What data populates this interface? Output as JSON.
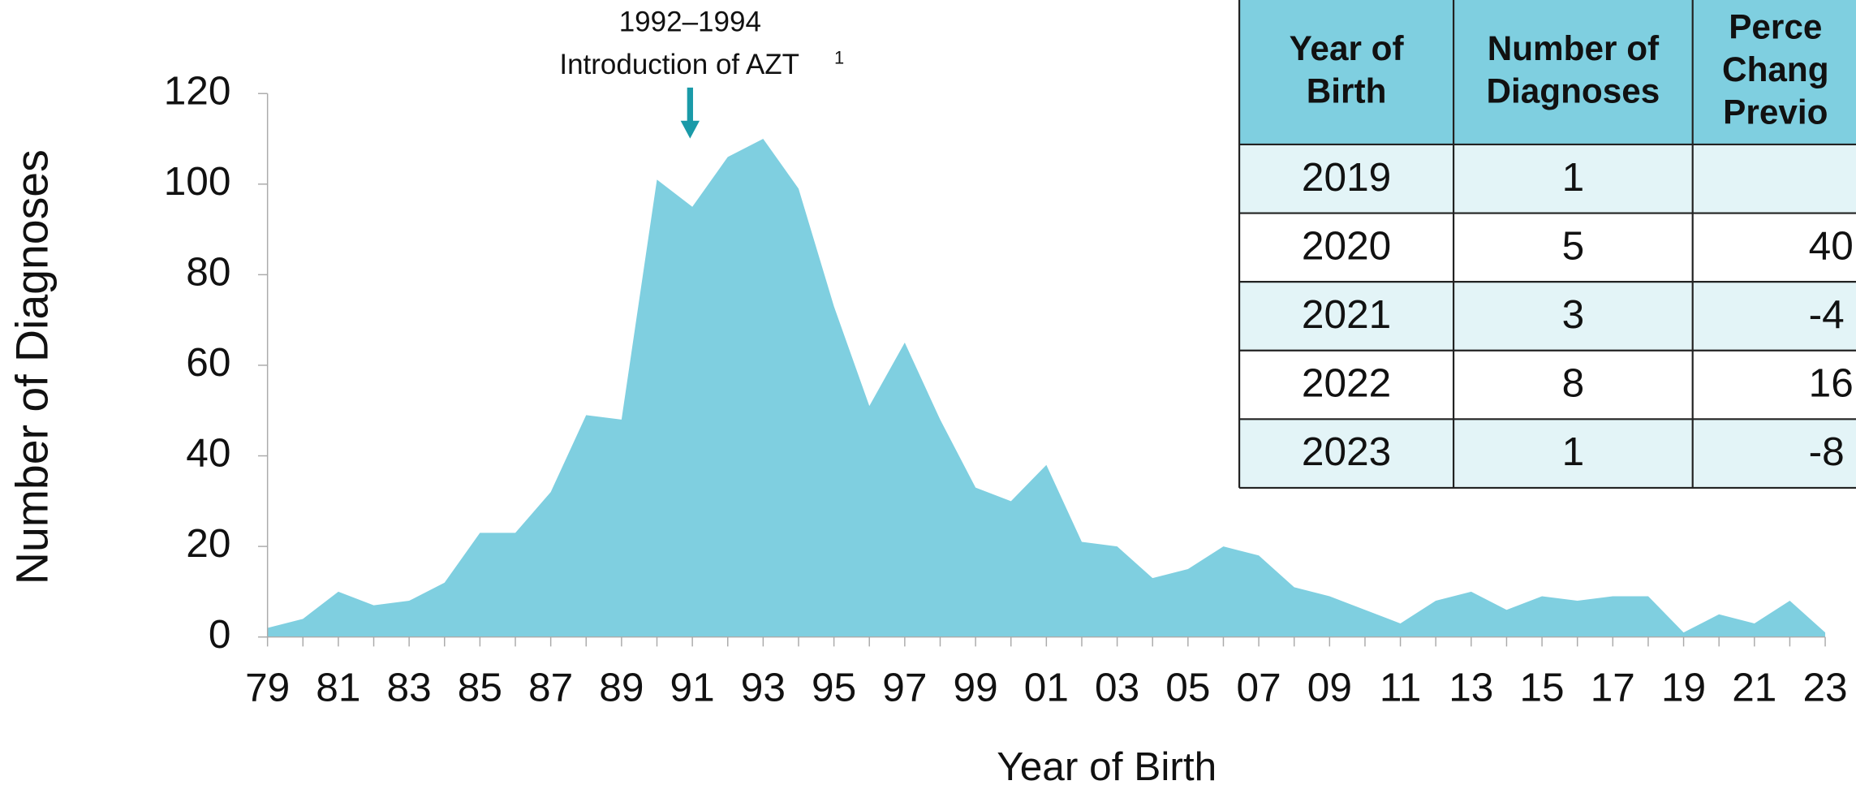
{
  "chart_data": {
    "type": "area",
    "annotation": {
      "years": "1992–1994",
      "text": "Introduction of AZT",
      "superscript": "1"
    },
    "x_label": "Year of Birth",
    "y_label": "Number of Diagnoses",
    "categories": [
      "79",
      null,
      "81",
      null,
      "83",
      null,
      "85",
      null,
      "87",
      null,
      "89",
      null,
      "91",
      null,
      "93",
      null,
      "95",
      null,
      "97",
      null,
      "99",
      null,
      "01",
      null,
      "03",
      null,
      "05",
      null,
      "07",
      null,
      "09",
      null,
      "11",
      null,
      "13",
      null,
      "15",
      null,
      "17",
      null,
      "19",
      null,
      "21",
      null,
      "23"
    ],
    "values": [
      2,
      4,
      10,
      7,
      8,
      12,
      23,
      23,
      32,
      49,
      48,
      101,
      95,
      106,
      110,
      99,
      73,
      51,
      65,
      48,
      33,
      30,
      38,
      21,
      20,
      13,
      15,
      20,
      18,
      11,
      9,
      6,
      3,
      8,
      10,
      6,
      9,
      8,
      9,
      9,
      1,
      5,
      3,
      8,
      1
    ],
    "color": "#7fcfe0",
    "ylim": [
      0,
      120
    ],
    "yticks": [
      0,
      20,
      40,
      60,
      80,
      100,
      120
    ]
  },
  "table": {
    "header": [
      [
        "Year of",
        "Birth"
      ],
      [
        "Number of",
        "Diagnoses"
      ],
      [
        "Perce",
        "Chang",
        "Previo"
      ]
    ],
    "rows": [
      [
        "2019",
        "1",
        ""
      ],
      [
        "2020",
        "5",
        "40"
      ],
      [
        "2021",
        "3",
        "-4"
      ],
      [
        "2022",
        "8",
        "16"
      ],
      [
        "2023",
        "1",
        "-8"
      ]
    ]
  }
}
